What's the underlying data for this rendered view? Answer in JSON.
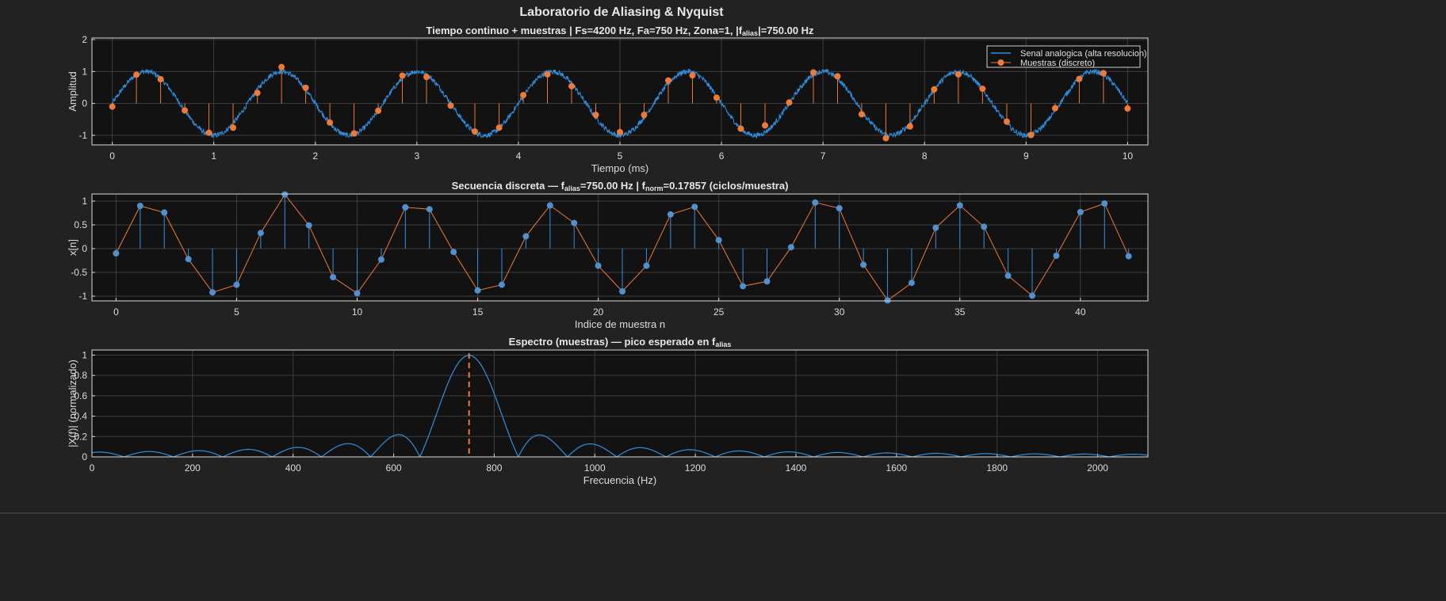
{
  "window": {
    "figure_title": "Laboratorio de Aliasing & Nyquist"
  },
  "colors": {
    "background": "#222222",
    "axes_bg": "#121212",
    "grid": "#3d3d3d",
    "axis": "#d9d9d9",
    "blue": "#2f8fe0",
    "orange": "#f07a35",
    "stem_blue": "#3a8fd8",
    "dot_blue": "#4f90d0"
  },
  "chart_data": [
    {
      "id": "time",
      "type": "line",
      "title_parts": [
        "Tiempo  continuo  +  muestras     |     Fs=4200  Hz,  Fa=750  Hz,  Zona=1,  |f",
        "alias",
        "|=750.00  Hz"
      ],
      "xlabel": "Tiempo (ms)",
      "ylabel": "Amplitud",
      "xlim": [
        -0.2,
        10.2
      ],
      "ylim": [
        -1.3,
        2.05
      ],
      "xticks": [
        0,
        1,
        2,
        3,
        4,
        5,
        6,
        7,
        8,
        9,
        10
      ],
      "yticks": [
        -1,
        0,
        1,
        2
      ],
      "grid": true,
      "legend_position": "top-right",
      "legend": [
        "Senal analogica (alta resolucion)",
        "Muestras (discreto)"
      ],
      "analog": {
        "name": "Senal analogica (alta resolucion)",
        "frequency_hz": 750,
        "amplitude": 1.0,
        "noise_amplitude": 0.08,
        "t_start_ms": 0,
        "t_end_ms": 10
      },
      "samples_t_ms": [
        0.0,
        0.238,
        0.476,
        0.714,
        0.952,
        1.19,
        1.429,
        1.667,
        1.905,
        2.143,
        2.381,
        2.619,
        2.857,
        3.095,
        3.333,
        3.571,
        3.81,
        4.048,
        4.286,
        4.524,
        4.762,
        5.0,
        5.238,
        5.476,
        5.714,
        5.952,
        6.19,
        6.429,
        6.667,
        6.905,
        7.143,
        7.381,
        7.619,
        7.857,
        8.095,
        8.333,
        8.571,
        8.81,
        9.048,
        9.286,
        9.524,
        9.762,
        10.0
      ],
      "samples": [
        -0.1,
        0.9,
        0.76,
        -0.22,
        -0.92,
        -0.76,
        0.33,
        1.14,
        0.49,
        -0.6,
        -0.94,
        -0.23,
        0.87,
        0.83,
        -0.07,
        -0.88,
        -0.76,
        0.26,
        0.91,
        0.54,
        -0.36,
        -0.9,
        -0.36,
        0.72,
        0.88,
        0.18,
        -0.79,
        -0.69,
        0.03,
        0.97,
        0.85,
        -0.34,
        -1.09,
        -0.72,
        0.44,
        0.91,
        0.46,
        -0.57,
        -0.99,
        -0.15,
        0.77,
        0.95,
        -0.16
      ]
    },
    {
      "id": "discrete",
      "type": "scatter",
      "title_parts": [
        "Secuencia  discreta  —  f",
        "alias",
        "=750.00  Hz   |   f",
        "norm",
        "=0.17857  (ciclos/muestra)"
      ],
      "xlabel": "Indice de muestra n",
      "ylabel": "x[n]",
      "xlim": [
        -1,
        42.8
      ],
      "ylim": [
        -1.1,
        1.15
      ],
      "xticks": [
        0,
        5,
        10,
        15,
        20,
        25,
        30,
        35,
        40
      ],
      "yticks": [
        -1,
        -0.5,
        0,
        0.5,
        1
      ],
      "grid": true,
      "n": [
        0,
        1,
        2,
        3,
        4,
        5,
        6,
        7,
        8,
        9,
        10,
        11,
        12,
        13,
        14,
        15,
        16,
        17,
        18,
        19,
        20,
        21,
        22,
        23,
        24,
        25,
        26,
        27,
        28,
        29,
        30,
        31,
        32,
        33,
        34,
        35,
        36,
        37,
        38,
        39,
        40,
        41,
        42
      ],
      "values": [
        -0.1,
        0.9,
        0.76,
        -0.22,
        -0.92,
        -0.76,
        0.33,
        1.14,
        0.49,
        -0.6,
        -0.94,
        -0.23,
        0.87,
        0.83,
        -0.07,
        -0.88,
        -0.76,
        0.26,
        0.91,
        0.54,
        -0.36,
        -0.9,
        -0.36,
        0.72,
        0.88,
        0.18,
        -0.79,
        -0.69,
        0.03,
        0.97,
        0.85,
        -0.34,
        -1.09,
        -0.72,
        0.44,
        0.91,
        0.46,
        -0.57,
        -0.99,
        -0.15,
        0.77,
        0.95,
        -0.16
      ]
    },
    {
      "id": "spectrum",
      "type": "line",
      "title_parts": [
        "Espectro  (muestras)  —  pico  esperado  en  f",
        "alias",
        ""
      ],
      "xlabel": "Frecuencia (Hz)",
      "ylabel": "|X(f)| (normalizado)",
      "xlim": [
        0,
        2100
      ],
      "ylim": [
        0,
        1.05
      ],
      "xticks": [
        0,
        200,
        400,
        600,
        800,
        1000,
        1200,
        1400,
        1600,
        1800,
        2000
      ],
      "yticks": [
        0,
        0.2,
        0.4,
        0.6,
        0.8,
        1
      ],
      "grid": true,
      "peak_hz": 750,
      "expected_line_hz": 750,
      "sample_count": 43,
      "sample_rate_hz": 4200
    }
  ]
}
